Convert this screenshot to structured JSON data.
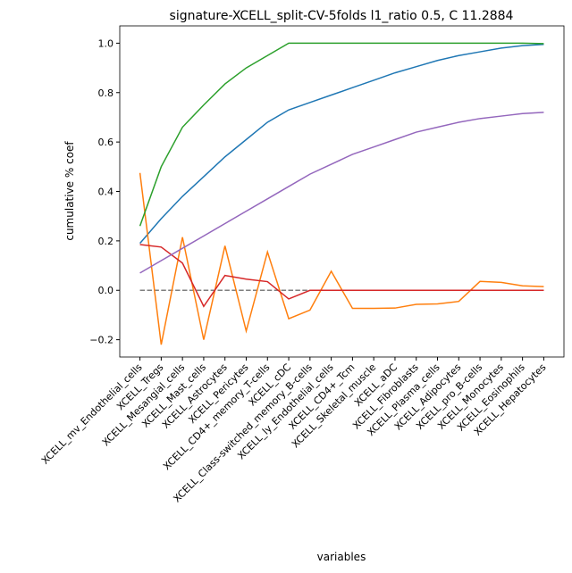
{
  "chart_data": {
    "type": "line",
    "title": "signature-XCELL_split-CV-5folds l1_ratio 0.5, C 11.2884",
    "x_label": "variables",
    "y_label": "cumulative % coef",
    "categories": [
      "XCELL_mv_Endothelial_cells",
      "XCELL_Tregs",
      "XCELL_Mesangial_cells",
      "XCELL_Mast_cells",
      "XCELL_Astrocytes",
      "XCELL_Pericytes",
      "XCELL_CD4+_memory_T-cells",
      "XCELL_cDC",
      "XCELL_Class-switched_memory_B-cells",
      "XCELL_ly_Endothelial_cells",
      "XCELL_CD4+_Tcm",
      "XCELL_Skeletal_muscle",
      "XCELL_aDC",
      "XCELL_Fibroblasts",
      "XCELL_Plasma_cells",
      "XCELL_Adipocytes",
      "XCELL_pro_B-cells",
      "XCELL_Monocytes",
      "XCELL_Eosinophils",
      "XCELL_Hepatocytes"
    ],
    "series": [
      {
        "color": "#7f7f7f",
        "dashed": true,
        "values": [
          0,
          0,
          0,
          0,
          0,
          0,
          0,
          0,
          0,
          0,
          0,
          0,
          0,
          0,
          0,
          0,
          0,
          0,
          0,
          0
        ]
      },
      {
        "color": "#1f77b4",
        "values": [
          0.19,
          0.29,
          0.38,
          0.46,
          0.54,
          0.61,
          0.68,
          0.73,
          0.76,
          0.79,
          0.82,
          0.85,
          0.88,
          0.905,
          0.93,
          0.95,
          0.965,
          0.98,
          0.99,
          0.995
        ]
      },
      {
        "color": "#ff7f0e",
        "values": [
          0.475,
          -0.22,
          0.215,
          -0.2,
          0.18,
          -0.165,
          0.155,
          -0.115,
          -0.08,
          0.077,
          -0.073,
          -0.073,
          -0.072,
          -0.057,
          -0.055,
          -0.045,
          0.036,
          0.032,
          0.018,
          0.015
        ]
      },
      {
        "color": "#2ca02c",
        "values": [
          0.26,
          0.5,
          0.66,
          0.75,
          0.835,
          0.9,
          0.95,
          1.0,
          1.0,
          1.0,
          1.0,
          1.0,
          1.0,
          1.0,
          1.0,
          1.0,
          1.0,
          1.0,
          1.0,
          0.998
        ]
      },
      {
        "color": "#d62728",
        "values": [
          0.185,
          0.175,
          0.11,
          -0.065,
          0.06,
          0.045,
          0.035,
          -0.035,
          0,
          0,
          0,
          0,
          0,
          0,
          0,
          0,
          0,
          0,
          0,
          0
        ]
      },
      {
        "color": "#9467bd",
        "values": [
          0.07,
          0.12,
          0.17,
          0.22,
          0.27,
          0.32,
          0.37,
          0.42,
          0.47,
          0.51,
          0.55,
          0.58,
          0.61,
          0.64,
          0.66,
          0.68,
          0.695,
          0.705,
          0.715,
          0.72
        ]
      }
    ],
    "ylim": [
      -0.27,
      1.07
    ],
    "yticks": [
      {
        "value": -0.2,
        "label": "−0.2"
      },
      {
        "value": 0,
        "label": "0.0"
      },
      {
        "value": 0.2,
        "label": "0.2"
      },
      {
        "value": 0.4,
        "label": "0.4"
      },
      {
        "value": 0.6,
        "label": "0.6"
      },
      {
        "value": 0.8,
        "label": "0.8"
      },
      {
        "value": 1.0,
        "label": "1.0"
      }
    ],
    "grid": false
  }
}
